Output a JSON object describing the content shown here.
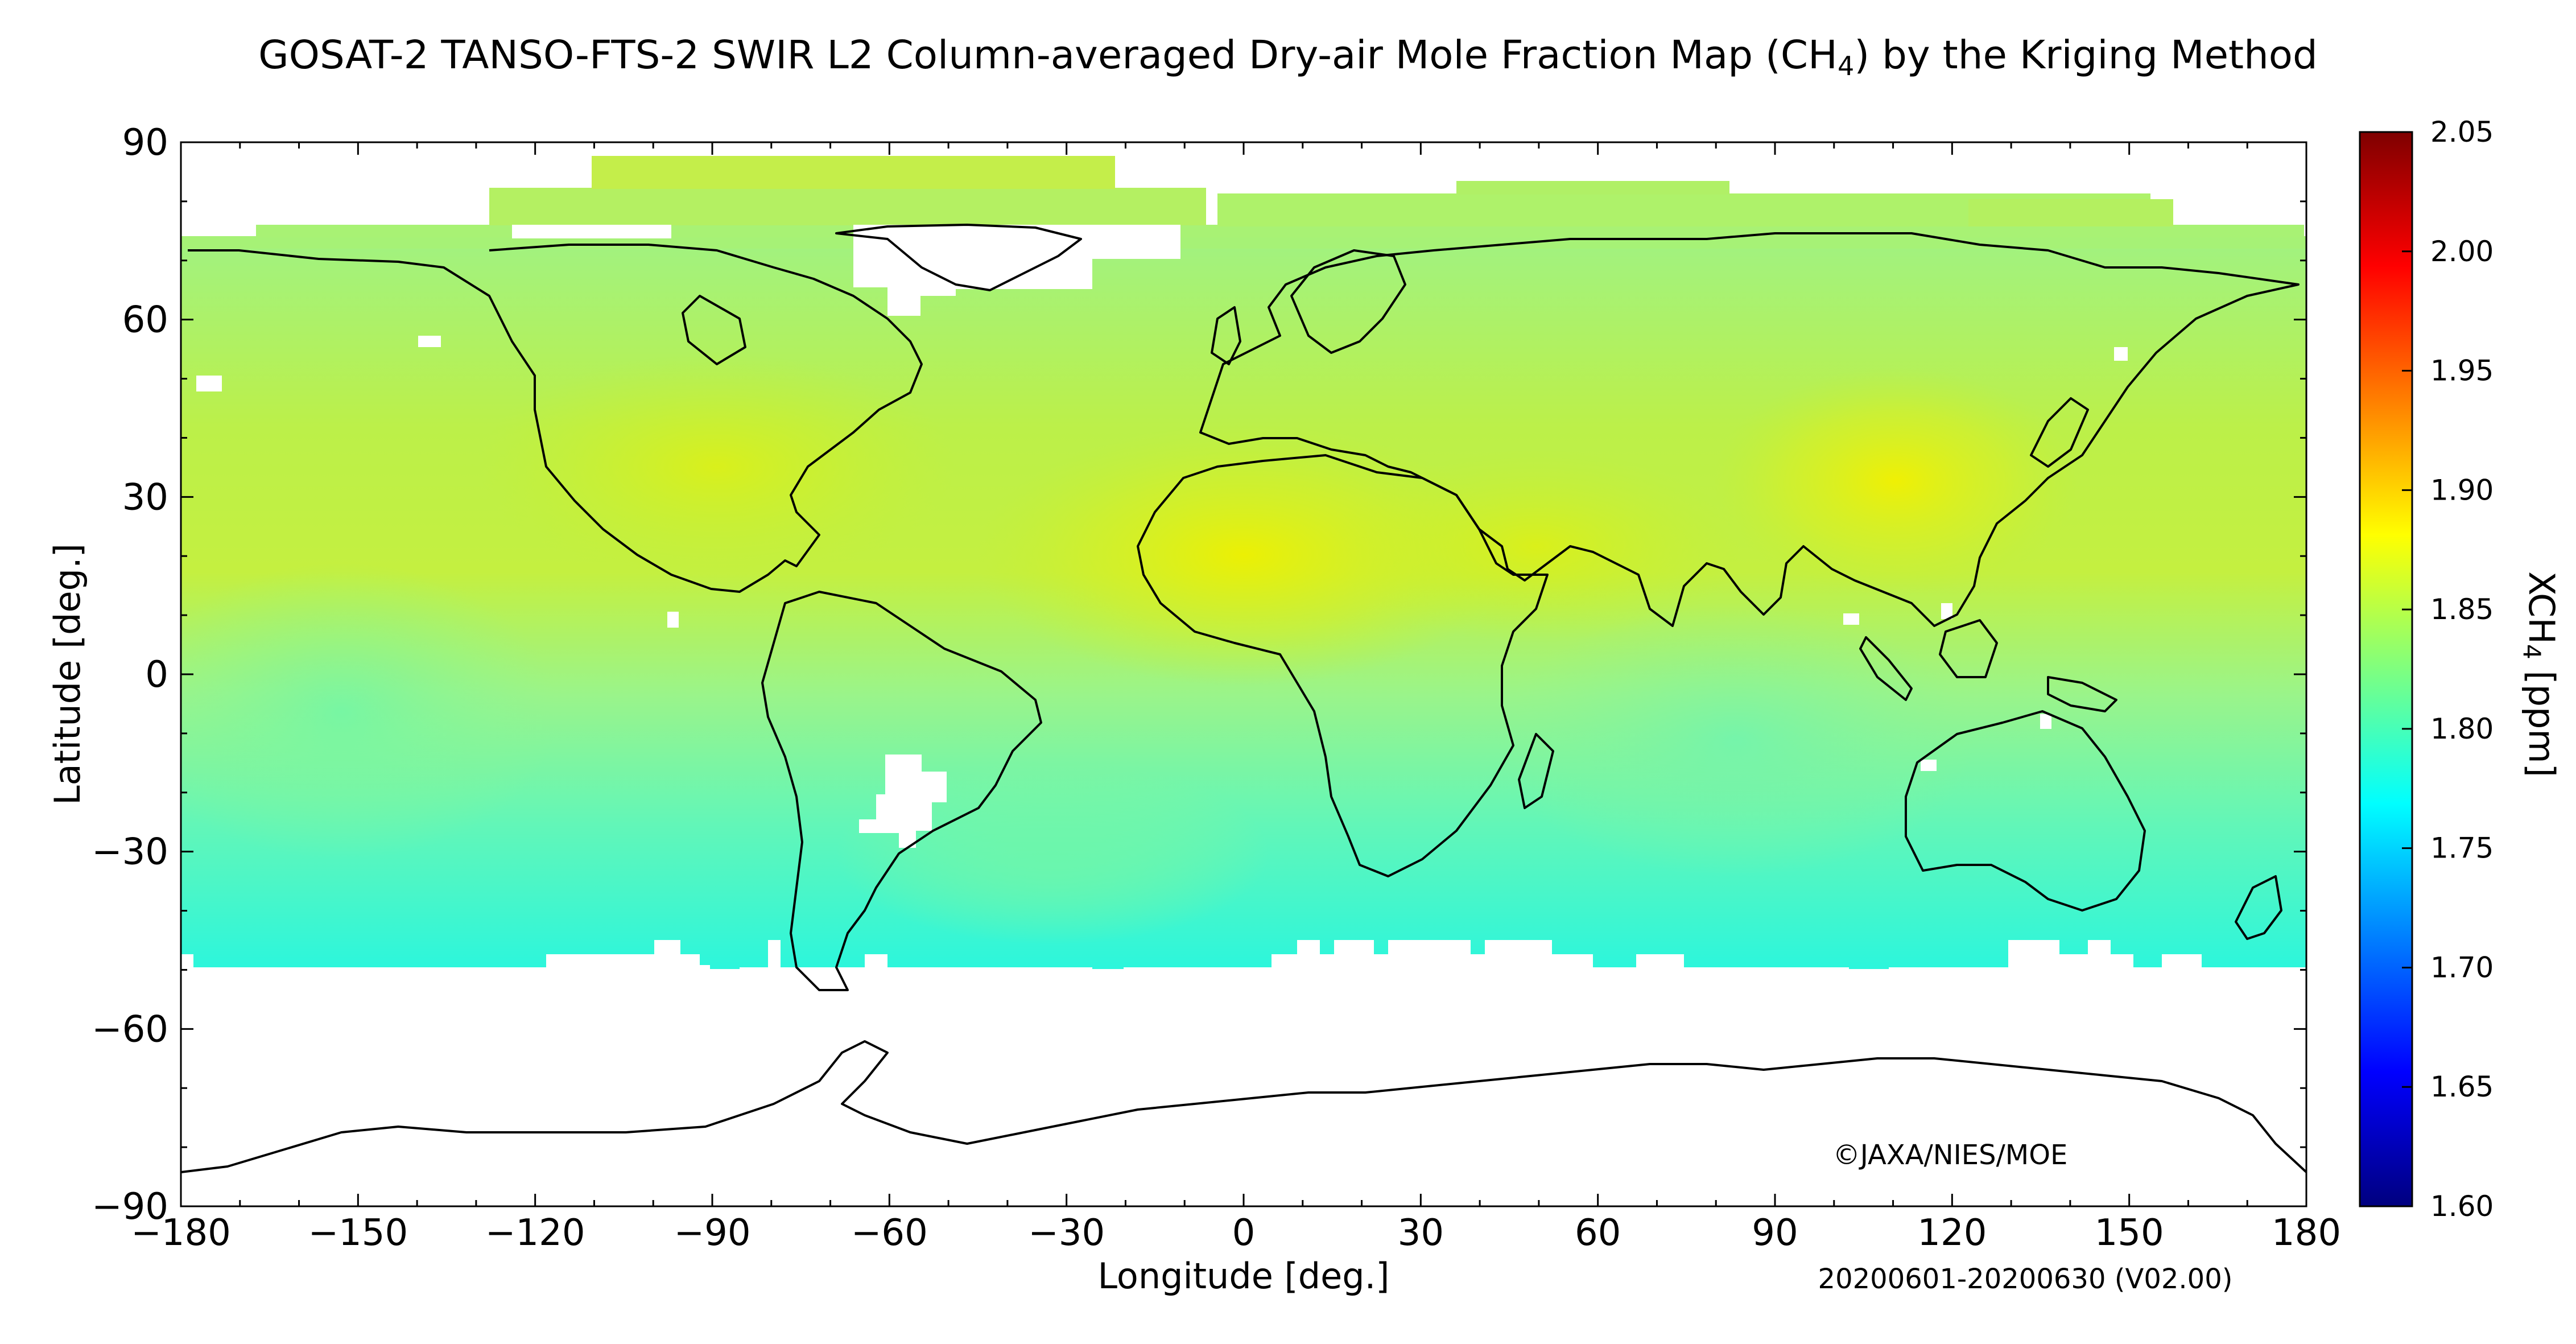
{
  "figure": {
    "title_main": "GOSAT-2 TANSO-FTS-2 SWIR L2 Column-averaged Dry-air Mole Fraction Map (CH",
    "title_sub": "4",
    "title_end": ") by the Kriging Method",
    "copyright": "©JAXA/NIES/MOE",
    "period": "20200601-20200630 (V02.00)"
  },
  "chart_data": {
    "type": "heatmap",
    "projection": "equirectangular",
    "title": "GOSAT-2 TANSO-FTS-2 SWIR L2 Column-averaged Dry-air Mole Fraction Map (CH4) by the Kriging Method",
    "xlabel": "Longitude [deg.]",
    "ylabel": "Latitude [deg.]",
    "xlim": [
      -180,
      180
    ],
    "ylim": [
      -90,
      90
    ],
    "x_ticks": [
      -180,
      -150,
      -120,
      -90,
      -60,
      -30,
      0,
      30,
      60,
      90,
      120,
      150,
      180
    ],
    "y_ticks": [
      -90,
      -60,
      -30,
      0,
      30,
      60,
      90
    ],
    "x_tick_labels": [
      "−180",
      "−150",
      "−120",
      "−90",
      "−60",
      "−30",
      "0",
      "30",
      "60",
      "90",
      "120",
      "150",
      "180"
    ],
    "y_tick_labels": [
      "−90",
      "−60",
      "−30",
      "0",
      "30",
      "60",
      "90"
    ],
    "colorbar": {
      "label_main": "XCH",
      "label_sub": "4",
      "label_end": " [ppm]",
      "min": 1.6,
      "max": 2.05,
      "ticks": [
        1.6,
        1.65,
        1.7,
        1.75,
        1.8,
        1.85,
        1.9,
        1.95,
        2.0,
        2.05
      ],
      "tick_labels": [
        "1.60",
        "1.65",
        "1.70",
        "1.75",
        "1.80",
        "1.85",
        "1.90",
        "1.95",
        "2.00",
        "2.05"
      ],
      "colormap": "jet",
      "stops": [
        "#00007f",
        "#0000ff",
        "#007fff",
        "#00ffff",
        "#7fff7f",
        "#ffff00",
        "#ff7f00",
        "#ff0000",
        "#7f0000"
      ]
    },
    "coverage": {
      "lat_south_limit": -50,
      "lat_north_limit": 72
    },
    "field_estimates": [
      {
        "lon": 0,
        "lat": 20,
        "value": 1.89
      },
      {
        "lon": 110,
        "lat": 32,
        "value": 1.89
      },
      {
        "lon": 50,
        "lat": 25,
        "value": 1.87
      },
      {
        "lon": -100,
        "lat": 35,
        "value": 1.85
      },
      {
        "lon": -130,
        "lat": 20,
        "value": 1.83
      },
      {
        "lon": -160,
        "lat": 0,
        "value": 1.8
      },
      {
        "lon": 80,
        "lat": -10,
        "value": 1.8
      },
      {
        "lon": 130,
        "lat": -30,
        "value": 1.79
      },
      {
        "lon": -60,
        "lat": -45,
        "value": 1.76
      },
      {
        "lon": 20,
        "lat": -45,
        "value": 1.77
      },
      {
        "lon": 0,
        "lat": 65,
        "value": 1.85
      }
    ]
  }
}
